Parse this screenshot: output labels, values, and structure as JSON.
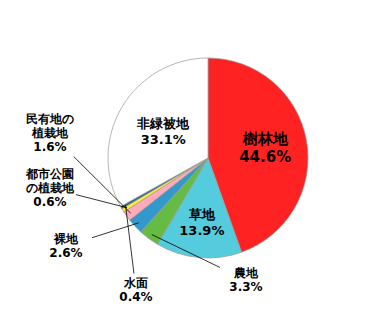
{
  "chart_data": {
    "type": "pie",
    "categories": [
      "樹林地",
      "草地",
      "農地",
      "裸地",
      "民有地の\n植栽地",
      "都市公園\nの植栽地",
      "水面",
      "非緑被地"
    ],
    "values": [
      44.6,
      13.9,
      3.3,
      2.6,
      1.6,
      0.6,
      0.4,
      33.1
    ],
    "value_labels": [
      "44.6%",
      "13.9%",
      "3.3%",
      "2.6%",
      "1.6%",
      "0.6%",
      "0.4%",
      "33.1%"
    ],
    "colors": [
      "#FF2222",
      "#55CCDD",
      "#66BB44",
      "#3399CC",
      "#FFAABB",
      "#FFEE33",
      "#226699",
      "#FFFFFF"
    ],
    "data_labels": true
  }
}
